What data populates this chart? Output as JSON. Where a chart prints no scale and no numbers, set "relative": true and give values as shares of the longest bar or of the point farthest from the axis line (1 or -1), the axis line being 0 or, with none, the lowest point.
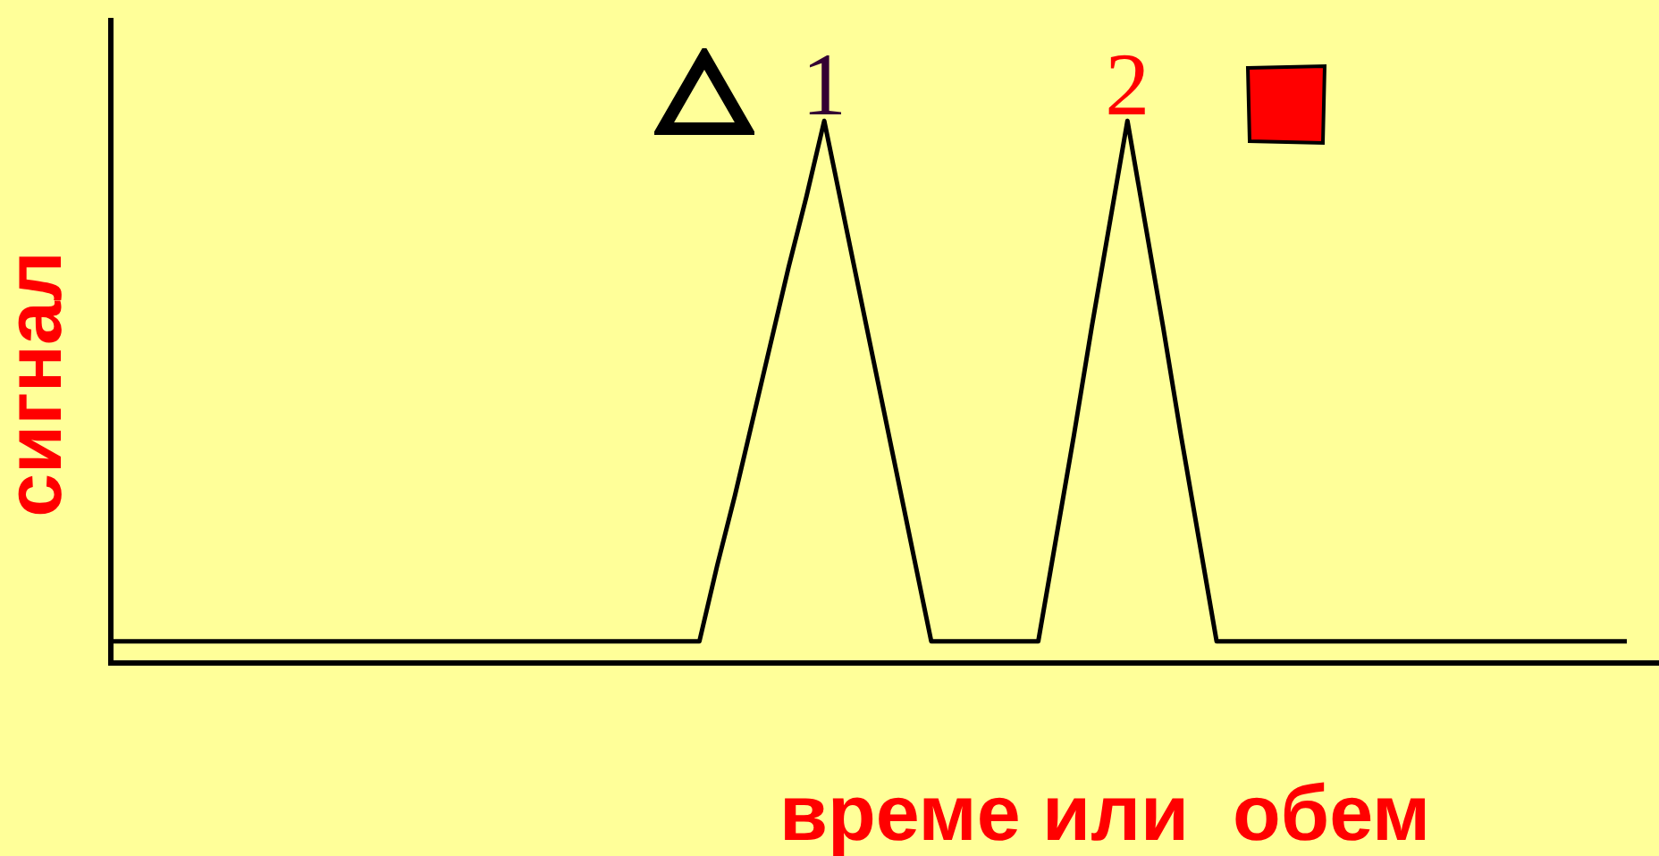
{
  "chart_data": {
    "type": "line",
    "relative": true,
    "xlabel": "време или  обем",
    "ylabel": "сигнал",
    "categories": [
      null,
      null,
      null,
      null,
      null,
      null,
      null,
      null,
      null,
      null,
      null,
      null,
      null,
      null,
      null,
      null,
      null,
      null,
      null,
      null,
      null,
      null,
      null,
      null,
      null,
      null,
      null,
      null,
      null,
      null,
      null,
      null,
      null,
      null,
      null,
      null,
      null,
      null,
      null,
      null,
      null,
      null,
      null,
      null,
      null,
      null,
      null,
      null,
      null,
      null,
      null,
      null,
      null,
      null,
      null,
      null,
      null,
      null,
      null,
      null,
      null,
      null,
      null,
      null,
      null,
      null,
      null,
      null,
      null,
      null,
      null,
      null,
      null,
      null,
      null,
      null,
      null,
      null,
      null,
      null,
      null,
      null,
      null,
      null,
      null,
      null
    ],
    "series": [
      {
        "color": "#000000",
        "values": [
          0.04,
          0.04,
          0.04,
          0.04,
          0.04,
          0.04,
          0.04,
          0.04,
          0.04,
          0.04,
          0.04,
          0.04,
          0.04,
          0.04,
          0.04,
          0.04,
          0.04,
          0.04,
          0.04,
          0.04,
          0.04,
          0.04,
          0.04,
          0.04,
          0.04,
          0.04,
          0.04,
          0.04,
          0.04,
          0.04,
          0.04,
          0.04,
          0.04,
          0.04,
          0.18,
          0.31,
          0.45,
          0.59,
          0.73,
          0.86,
          1,
          0.84,
          0.68,
          0.52,
          0.36,
          0.2,
          0.04,
          0.04,
          0.04,
          0.04,
          0.04,
          0.04,
          0.04,
          0.23,
          0.42,
          0.62,
          0.81,
          1,
          0.81,
          0.62,
          0.42,
          0.23,
          0.04,
          0.04,
          0.04,
          0.04,
          0.04,
          0.04,
          0.04,
          0.04,
          0.04,
          0.04,
          0.04,
          0.04,
          0.04,
          0.04,
          0.04,
          0.04,
          0.04,
          0.04,
          0.04,
          0.04,
          0.04,
          0.04,
          0.04,
          0.04
        ]
      }
    ],
    "annotations": [
      "1",
      "2"
    ]
  }
}
